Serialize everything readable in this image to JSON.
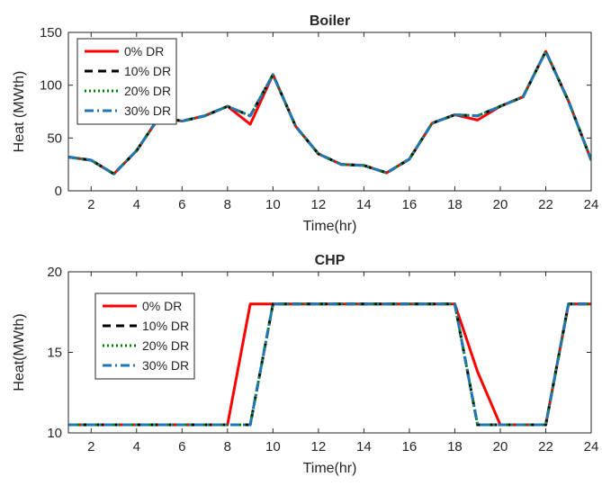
{
  "chart_data": [
    {
      "type": "line",
      "title": "Boiler",
      "xlabel": "Time(hr)",
      "ylabel": "Heat (MWth)",
      "xlim": [
        1,
        24
      ],
      "ylim": [
        0,
        150
      ],
      "xticks": [
        2,
        4,
        6,
        8,
        10,
        12,
        14,
        16,
        18,
        20,
        22,
        24
      ],
      "yticks": [
        0,
        50,
        100,
        150
      ],
      "grid": false,
      "legend_position": "top-left",
      "x": [
        1,
        2,
        3,
        4,
        5,
        6,
        7,
        8,
        9,
        10,
        11,
        12,
        13,
        14,
        15,
        16,
        17,
        18,
        19,
        20,
        21,
        22,
        23,
        24
      ],
      "series": [
        {
          "name": "0% DR",
          "color": "#ff0000",
          "dash": "solid",
          "values": [
            32,
            29,
            16,
            38,
            70,
            66,
            71,
            80,
            63,
            110,
            61,
            35,
            25,
            24,
            17,
            30,
            64,
            72,
            67,
            80,
            89,
            132,
            85,
            29
          ]
        },
        {
          "name": "10% DR",
          "color": "#000000",
          "dash": "dashed",
          "values": [
            32,
            29,
            16,
            38,
            70,
            66,
            71,
            80,
            71,
            110,
            61,
            35,
            25,
            24,
            17,
            30,
            64,
            72,
            71,
            80,
            89,
            132,
            85,
            29
          ]
        },
        {
          "name": "20% DR",
          "color": "#008000",
          "dash": "dotted",
          "values": [
            32,
            29,
            16,
            38,
            70,
            66,
            71,
            80,
            71,
            110,
            61,
            35,
            25,
            24,
            17,
            30,
            64,
            72,
            71,
            80,
            89,
            132,
            85,
            29
          ]
        },
        {
          "name": "30% DR",
          "color": "#1f77b4",
          "dash": "dashdot",
          "values": [
            32,
            29,
            16,
            38,
            70,
            66,
            71,
            80,
            71,
            110,
            61,
            35,
            25,
            24,
            17,
            30,
            64,
            72,
            71,
            80,
            89,
            132,
            85,
            29
          ]
        }
      ]
    },
    {
      "type": "line",
      "title": "CHP",
      "xlabel": "Time(hr)",
      "ylabel": "Heat(MWth)",
      "xlim": [
        1,
        24
      ],
      "ylim": [
        10,
        20
      ],
      "xticks": [
        2,
        4,
        6,
        8,
        10,
        12,
        14,
        16,
        18,
        20,
        22,
        24
      ],
      "yticks": [
        10,
        15,
        20
      ],
      "grid": false,
      "legend_position": "top-left",
      "x": [
        1,
        2,
        3,
        4,
        5,
        6,
        7,
        8,
        9,
        10,
        11,
        12,
        13,
        14,
        15,
        16,
        17,
        18,
        19,
        20,
        21,
        22,
        23,
        24
      ],
      "series": [
        {
          "name": "0% DR",
          "color": "#ff0000",
          "dash": "solid",
          "values": [
            10.5,
            10.5,
            10.5,
            10.5,
            10.5,
            10.5,
            10.5,
            10.5,
            18,
            18,
            18,
            18,
            18,
            18,
            18,
            18,
            18,
            18,
            13.8,
            10.5,
            10.5,
            10.5,
            18,
            18
          ]
        },
        {
          "name": "10% DR",
          "color": "#000000",
          "dash": "dashed",
          "values": [
            10.5,
            10.5,
            10.5,
            10.5,
            10.5,
            10.5,
            10.5,
            10.5,
            10.5,
            18,
            18,
            18,
            18,
            18,
            18,
            18,
            18,
            18,
            10.5,
            10.5,
            10.5,
            10.5,
            18,
            18
          ]
        },
        {
          "name": "20% DR",
          "color": "#008000",
          "dash": "dotted",
          "values": [
            10.5,
            10.5,
            10.5,
            10.5,
            10.5,
            10.5,
            10.5,
            10.5,
            10.5,
            18,
            18,
            18,
            18,
            18,
            18,
            18,
            18,
            18,
            10.5,
            10.5,
            10.5,
            10.5,
            18,
            18
          ]
        },
        {
          "name": "30% DR",
          "color": "#1f77b4",
          "dash": "dashdot",
          "values": [
            10.5,
            10.5,
            10.5,
            10.5,
            10.5,
            10.5,
            10.5,
            10.5,
            10.5,
            18,
            18,
            18,
            18,
            18,
            18,
            18,
            18,
            18,
            10.5,
            10.5,
            10.5,
            10.5,
            18,
            18
          ]
        }
      ]
    }
  ]
}
